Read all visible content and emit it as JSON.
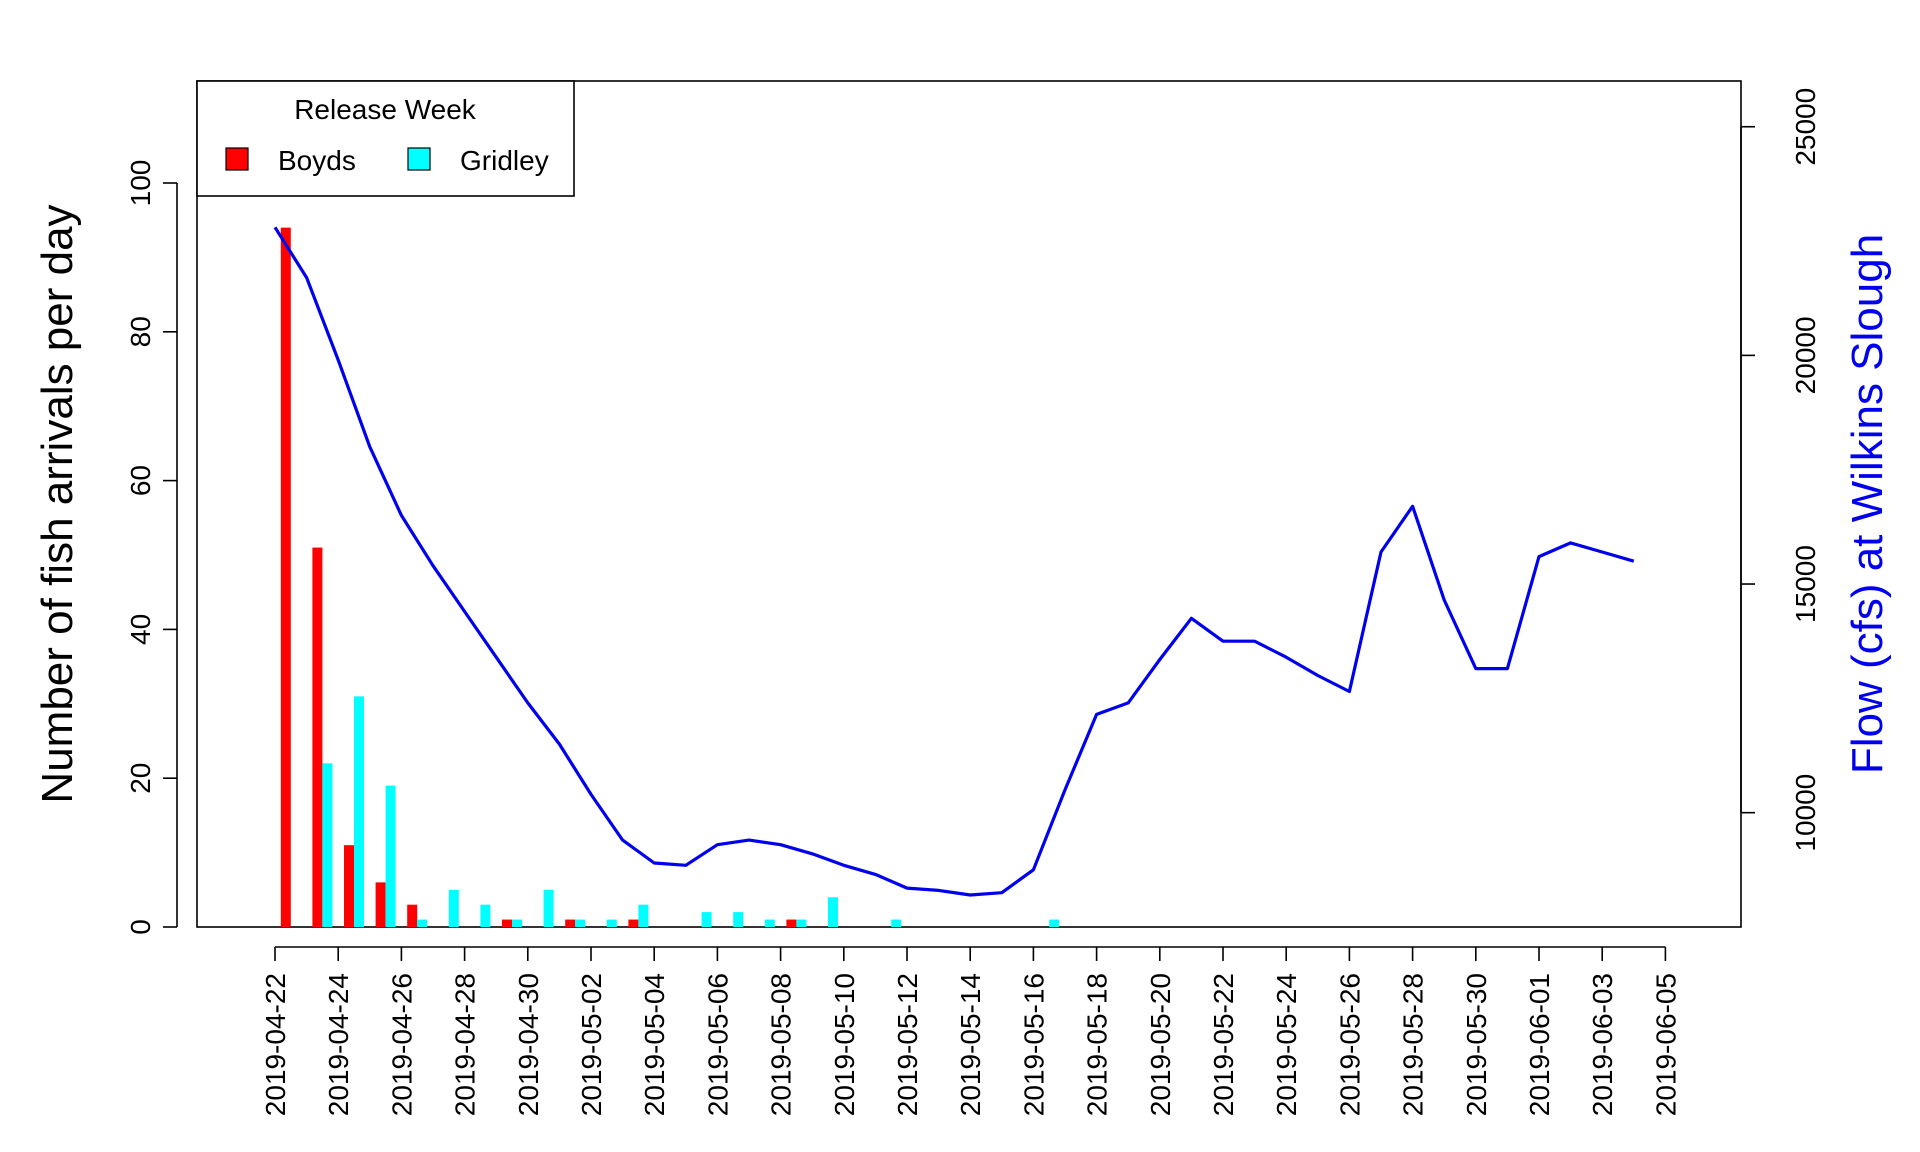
{
  "chart_data": {
    "type": "bar",
    "ylabel": "Number of fish arrivals per day",
    "y2label": "Flow (cfs) at Wilkins Slough",
    "ylim": [
      0,
      112
    ],
    "y2lim": [
      7500,
      26000
    ],
    "yticks": [
      0,
      20,
      40,
      60,
      80,
      100
    ],
    "y2ticks": [
      10000,
      15000,
      20000,
      25000
    ],
    "x_ticks": [
      "2019-04-22",
      "2019-04-24",
      "2019-04-26",
      "2019-04-28",
      "2019-04-30",
      "2019-05-02",
      "2019-05-04",
      "2019-05-06",
      "2019-05-08",
      "2019-05-10",
      "2019-05-12",
      "2019-05-14",
      "2019-05-16",
      "2019-05-18",
      "2019-05-20",
      "2019-05-22",
      "2019-05-24",
      "2019-05-26",
      "2019-05-28",
      "2019-05-30",
      "2019-06-01",
      "2019-06-03",
      "2019-06-05"
    ],
    "legend": {
      "title": "Release Week",
      "position": "top-left",
      "entries": [
        {
          "label": "Boyds",
          "color": "#ff0000"
        },
        {
          "label": "Gridley",
          "color": "#00ffff"
        }
      ]
    },
    "bar_series": [
      {
        "name": "Boyds",
        "color": "#ff0000",
        "points": [
          {
            "x": "2019-04-23",
            "y": 94
          },
          {
            "x": "2019-04-24",
            "y": 51
          },
          {
            "x": "2019-04-25",
            "y": 11
          },
          {
            "x": "2019-04-26",
            "y": 6
          },
          {
            "x": "2019-04-27",
            "y": 3
          },
          {
            "x": "2019-04-30",
            "y": 1
          },
          {
            "x": "2019-05-02",
            "y": 1
          },
          {
            "x": "2019-05-04",
            "y": 1
          },
          {
            "x": "2019-05-09",
            "y": 1
          }
        ]
      },
      {
        "name": "Gridley",
        "color": "#00ffff",
        "points": [
          {
            "x": "2019-04-24",
            "y": 22
          },
          {
            "x": "2019-04-25",
            "y": 31
          },
          {
            "x": "2019-04-26",
            "y": 19
          },
          {
            "x": "2019-04-27",
            "y": 1
          },
          {
            "x": "2019-04-28",
            "y": 5
          },
          {
            "x": "2019-04-29",
            "y": 3
          },
          {
            "x": "2019-04-30",
            "y": 1
          },
          {
            "x": "2019-05-01",
            "y": 5
          },
          {
            "x": "2019-05-02",
            "y": 1
          },
          {
            "x": "2019-05-03",
            "y": 1
          },
          {
            "x": "2019-05-04",
            "y": 3
          },
          {
            "x": "2019-05-06",
            "y": 2
          },
          {
            "x": "2019-05-07",
            "y": 2
          },
          {
            "x": "2019-05-08",
            "y": 1
          },
          {
            "x": "2019-05-09",
            "y": 1
          },
          {
            "x": "2019-05-10",
            "y": 4
          },
          {
            "x": "2019-05-12",
            "y": 1
          },
          {
            "x": "2019-05-17",
            "y": 1
          }
        ]
      }
    ],
    "line_series": {
      "name": "Flow (cfs) at Wilkins Slough",
      "color": "#0000ee",
      "axis": "right",
      "points": [
        {
          "x": "2019-04-22",
          "y": 22800
        },
        {
          "x": "2019-04-23",
          "y": 21700
        },
        {
          "x": "2019-04-24",
          "y": 19900
        },
        {
          "x": "2019-04-25",
          "y": 18000
        },
        {
          "x": "2019-04-26",
          "y": 16500
        },
        {
          "x": "2019-04-27",
          "y": 15400
        },
        {
          "x": "2019-04-28",
          "y": 14400
        },
        {
          "x": "2019-04-29",
          "y": 13400
        },
        {
          "x": "2019-04-30",
          "y": 12400
        },
        {
          "x": "2019-05-01",
          "y": 11500
        },
        {
          "x": "2019-05-02",
          "y": 10400
        },
        {
          "x": "2019-05-03",
          "y": 9400
        },
        {
          "x": "2019-05-04",
          "y": 8900
        },
        {
          "x": "2019-05-05",
          "y": 8850
        },
        {
          "x": "2019-05-06",
          "y": 9300
        },
        {
          "x": "2019-05-07",
          "y": 9400
        },
        {
          "x": "2019-05-08",
          "y": 9300
        },
        {
          "x": "2019-05-09",
          "y": 9100
        },
        {
          "x": "2019-05-10",
          "y": 8850
        },
        {
          "x": "2019-05-11",
          "y": 8650
        },
        {
          "x": "2019-05-12",
          "y": 8350
        },
        {
          "x": "2019-05-13",
          "y": 8300
        },
        {
          "x": "2019-05-14",
          "y": 8200
        },
        {
          "x": "2019-05-15",
          "y": 8250
        },
        {
          "x": "2019-05-16",
          "y": 8750
        },
        {
          "x": "2019-05-17",
          "y": 10500
        },
        {
          "x": "2019-05-18",
          "y": 12150
        },
        {
          "x": "2019-05-19",
          "y": 12400
        },
        {
          "x": "2019-05-20",
          "y": 13350
        },
        {
          "x": "2019-05-21",
          "y": 14250
        },
        {
          "x": "2019-05-22",
          "y": 13750
        },
        {
          "x": "2019-05-23",
          "y": 13750
        },
        {
          "x": "2019-05-24",
          "y": 13400
        },
        {
          "x": "2019-05-25",
          "y": 13000
        },
        {
          "x": "2019-05-26",
          "y": 12650
        },
        {
          "x": "2019-05-27",
          "y": 15700
        },
        {
          "x": "2019-05-28",
          "y": 16700
        },
        {
          "x": "2019-05-29",
          "y": 14650
        },
        {
          "x": "2019-05-30",
          "y": 13150
        },
        {
          "x": "2019-05-31",
          "y": 13150
        },
        {
          "x": "2019-06-01",
          "y": 15600
        },
        {
          "x": "2019-06-02",
          "y": 15900
        },
        {
          "x": "2019-06-03",
          "y": 15700
        },
        {
          "x": "2019-06-04",
          "y": 15500
        }
      ]
    }
  }
}
